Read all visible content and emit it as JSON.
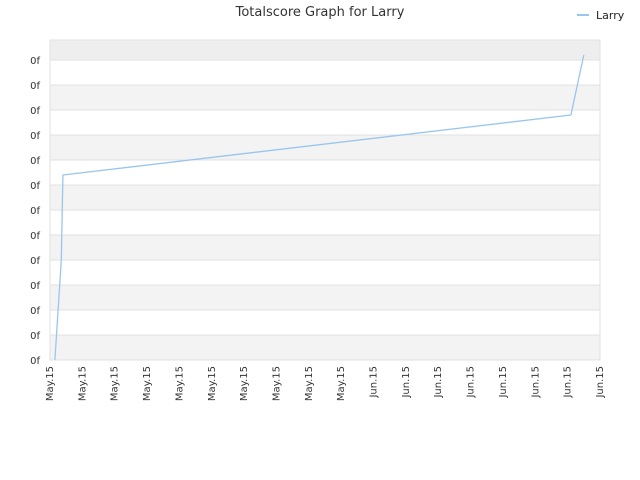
{
  "chart_data": {
    "type": "line",
    "title": "Totalscore Graph for Larry",
    "xlabel": "",
    "ylabel": "",
    "legend_position": "top-right",
    "grid": true,
    "x_tick_labels": [
      "May.15",
      "May.15",
      "May.15",
      "May.15",
      "May.15",
      "May.15",
      "May.15",
      "May.15",
      "May.15",
      "May.15",
      "Jun.15",
      "Jun.15",
      "Jun.15",
      "Jun.15",
      "Jun.15",
      "Jun.15",
      "Jun.15",
      "Jun.15"
    ],
    "y_tick_labels": [
      "0f",
      "0f",
      "0f",
      "0f",
      "0f",
      "0f",
      "0f",
      "0f",
      "0f",
      "0f",
      "0f",
      "0f",
      "0f"
    ],
    "xlim": [
      0,
      17
    ],
    "ylim": [
      0,
      12.8
    ],
    "series": [
      {
        "name": "Larry",
        "color": "#99c6ee",
        "x": [
          0.15,
          0.35,
          0.4,
          16.1,
          16.5
        ],
        "y": [
          0,
          4.0,
          7.4,
          9.8,
          12.2
        ]
      }
    ]
  }
}
